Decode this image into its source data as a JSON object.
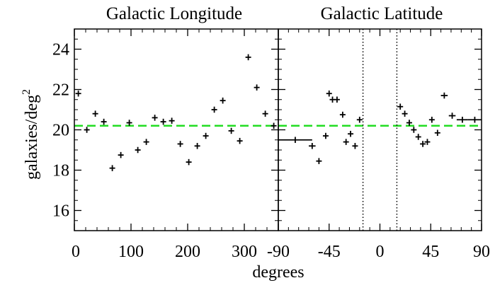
{
  "chart_data": [
    {
      "type": "scatter",
      "title": "Galactic Longitude",
      "xlabel": "",
      "ylabel": "galaxies/deg",
      "ylabel_sup": "2",
      "xlim": [
        0,
        360
      ],
      "ylim": [
        15,
        25
      ],
      "xticks": [
        0,
        100,
        200,
        300
      ],
      "xtick_labels": [
        "0",
        "100",
        "200",
        "300"
      ],
      "yticks": [
        16,
        18,
        20,
        22,
        24
      ],
      "ytick_labels": [
        "16",
        "18",
        "20",
        "22",
        "24"
      ],
      "mean_line": 20.2,
      "points": [
        {
          "x": 7,
          "y": 21.8
        },
        {
          "x": 22,
          "y": 20.0
        },
        {
          "x": 37,
          "y": 20.8
        },
        {
          "x": 52,
          "y": 20.4
        },
        {
          "x": 67,
          "y": 18.1
        },
        {
          "x": 82,
          "y": 18.75
        },
        {
          "x": 97,
          "y": 20.35
        },
        {
          "x": 112,
          "y": 19.0
        },
        {
          "x": 127,
          "y": 19.4
        },
        {
          "x": 142,
          "y": 20.6
        },
        {
          "x": 157,
          "y": 20.4
        },
        {
          "x": 172,
          "y": 20.45
        },
        {
          "x": 187,
          "y": 19.3
        },
        {
          "x": 202,
          "y": 18.4
        },
        {
          "x": 217,
          "y": 19.2
        },
        {
          "x": 232,
          "y": 19.7
        },
        {
          "x": 247,
          "y": 21.0
        },
        {
          "x": 262,
          "y": 21.45
        },
        {
          "x": 277,
          "y": 19.95
        },
        {
          "x": 292,
          "y": 19.45
        },
        {
          "x": 307,
          "y": 23.6
        },
        {
          "x": 322,
          "y": 22.1
        },
        {
          "x": 337,
          "y": 20.8
        },
        {
          "x": 352,
          "y": 20.2
        }
      ]
    },
    {
      "type": "scatter",
      "title": "Galactic Latitude",
      "xlabel": "degrees",
      "xlim": [
        -90,
        90
      ],
      "ylim": [
        15,
        25
      ],
      "xticks": [
        -90,
        -45,
        0,
        45,
        90
      ],
      "xtick_labels": [
        "-90",
        "-45",
        "0",
        "45",
        "90"
      ],
      "mean_line": 20.2,
      "vlines": [
        -15,
        15
      ],
      "points": [
        {
          "x": -75,
          "y": 19.5,
          "xerr": 15
        },
        {
          "x": -60,
          "y": 19.2,
          "xerr": 3
        },
        {
          "x": -54,
          "y": 18.45,
          "xerr": 2
        },
        {
          "x": -48,
          "y": 19.7,
          "xerr": 2
        },
        {
          "x": -45,
          "y": 21.8,
          "xerr": 2
        },
        {
          "x": -42,
          "y": 21.5,
          "xerr": 2
        },
        {
          "x": -38,
          "y": 21.5,
          "xerr": 2
        },
        {
          "x": -33,
          "y": 20.75,
          "xerr": 2
        },
        {
          "x": -30,
          "y": 19.4,
          "xerr": 2
        },
        {
          "x": -26,
          "y": 19.8,
          "xerr": 2
        },
        {
          "x": -22,
          "y": 19.2,
          "xerr": 2
        },
        {
          "x": -18,
          "y": 20.5,
          "xerr": 2
        },
        {
          "x": 18,
          "y": 21.15,
          "xerr": 2
        },
        {
          "x": 22,
          "y": 20.8,
          "xerr": 2
        },
        {
          "x": 26,
          "y": 20.35,
          "xerr": 2
        },
        {
          "x": 30,
          "y": 20.0,
          "xerr": 2
        },
        {
          "x": 34,
          "y": 19.65,
          "xerr": 2
        },
        {
          "x": 38,
          "y": 19.3,
          "xerr": 2
        },
        {
          "x": 42,
          "y": 19.4,
          "xerr": 2
        },
        {
          "x": 46,
          "y": 20.5,
          "xerr": 2
        },
        {
          "x": 51,
          "y": 19.85,
          "xerr": 2
        },
        {
          "x": 57,
          "y": 21.7,
          "xerr": 3
        },
        {
          "x": 64,
          "y": 20.7,
          "xerr": 3
        },
        {
          "x": 73,
          "y": 20.5,
          "xerr": 5
        },
        {
          "x": 84,
          "y": 20.5,
          "xerr": 6
        }
      ]
    }
  ]
}
